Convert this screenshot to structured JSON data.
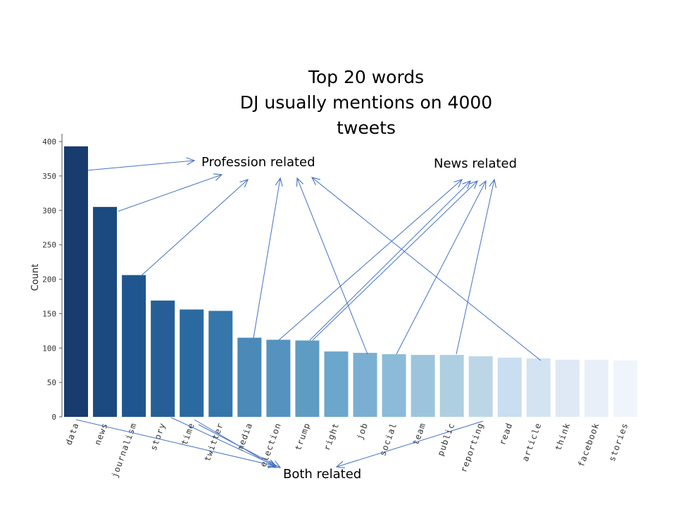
{
  "slide": {
    "title_lines": [
      "Top 20 words",
      "DJ usually mentions on 4000",
      "tweets"
    ]
  },
  "chart_data": {
    "type": "bar",
    "title": "Top 20 words DJ usually mentions on 4000 tweets",
    "xlabel": "",
    "ylabel": "Count",
    "ylim": [
      0,
      410
    ],
    "yticks": [
      0,
      50,
      100,
      150,
      200,
      250,
      300,
      350,
      400
    ],
    "grid": false,
    "categories": [
      "data",
      "news",
      "journalism",
      "story",
      "time",
      "twitter",
      "media",
      "election",
      "trump",
      "right",
      "job",
      "social",
      "team",
      "public",
      "reporting",
      "read",
      "article",
      "think",
      "facebook",
      "stories"
    ],
    "values": [
      393,
      305,
      206,
      169,
      156,
      154,
      115,
      112,
      111,
      95,
      93,
      91,
      90,
      90,
      88,
      86,
      85,
      83,
      83,
      82
    ],
    "colors": [
      "#173c6d",
      "#1b4a80",
      "#1f568f",
      "#265f97",
      "#2b6aa1",
      "#3576ab",
      "#4a89b8",
      "#5592bf",
      "#5f9cc4",
      "#6ba6cc",
      "#7aafd2",
      "#8bbbd9",
      "#9cc5dd",
      "#aecfe2",
      "#bdd6e6",
      "#c9def0",
      "#d4e3f2",
      "#dfe9f6",
      "#e8eff9",
      "#f0f5fc"
    ],
    "annotations": [
      {
        "label": "Profession related",
        "words": [
          "data",
          "news",
          "journalism",
          "media",
          "job",
          "article"
        ]
      },
      {
        "label": "News related",
        "words": [
          "election",
          "trump",
          "social",
          "public"
        ]
      },
      {
        "label": "Both related",
        "words": [
          "data",
          "time",
          "twitter",
          "reporting"
        ]
      }
    ]
  }
}
